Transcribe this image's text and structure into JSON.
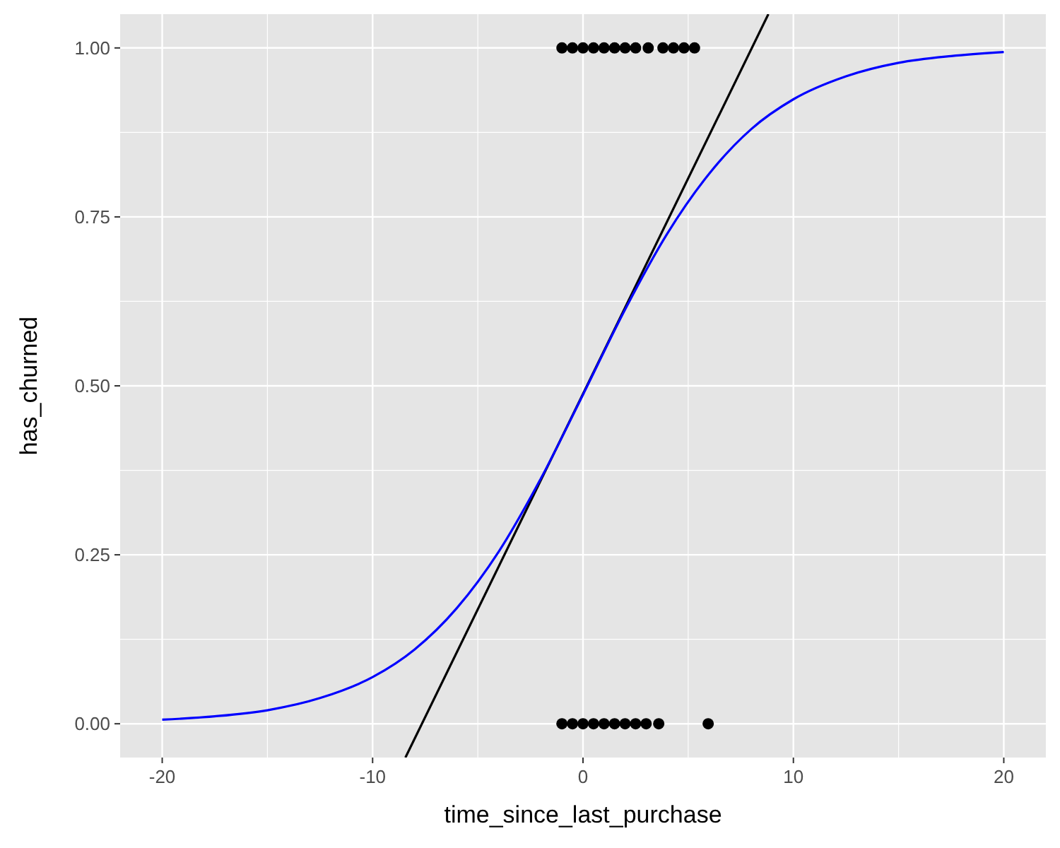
{
  "chart_data": {
    "type": "scatter",
    "xlabel": "time_since_last_purchase",
    "ylabel": "has_churned",
    "xlim": [
      -22,
      22
    ],
    "ylim": [
      -0.05,
      1.05
    ],
    "xticks": [
      -20,
      -10,
      0,
      10,
      20
    ],
    "yticks": [
      {
        "value": 0,
        "label": "0.00"
      },
      {
        "value": 0.25,
        "label": "0.25"
      },
      {
        "value": 0.5,
        "label": "0.50"
      },
      {
        "value": 0.75,
        "label": "0.75"
      },
      {
        "value": 1,
        "label": "1.00"
      }
    ],
    "grid": true,
    "series": [
      {
        "marker": "circle",
        "color": "#000000",
        "x": [
          -1.0,
          -0.5,
          0,
          0.5,
          1.0,
          1.5,
          2.0,
          2.5,
          3.1,
          3.8,
          4.3,
          4.8,
          5.3,
          -1.0,
          -0.5,
          0,
          0.5,
          1.0,
          1.5,
          2.0,
          2.5,
          3.0,
          3.6,
          5.95
        ],
        "values": [
          1,
          1,
          1,
          1,
          1,
          1,
          1,
          1,
          1,
          1,
          1,
          1,
          1,
          0,
          0,
          0,
          0,
          0,
          0,
          0,
          0,
          0,
          0,
          0
        ]
      },
      {
        "type": "line",
        "color": "#000000",
        "x": [
          -8.44,
          8.81
        ],
        "values": [
          -0.05,
          1.05
        ]
      },
      {
        "type": "line",
        "color": "#0000ff",
        "x": [
          -20,
          -17.5,
          -15,
          -12.5,
          -10,
          -8,
          -6,
          -4,
          -2,
          0,
          2,
          4,
          6,
          8,
          10,
          12.5,
          15,
          17.5,
          20
        ],
        "values": [
          0.006,
          0.011,
          0.02,
          0.038,
          0.069,
          0.11,
          0.171,
          0.255,
          0.363,
          0.487,
          0.613,
          0.725,
          0.814,
          0.88,
          0.924,
          0.958,
          0.978,
          0.988,
          0.994
        ]
      }
    ]
  }
}
